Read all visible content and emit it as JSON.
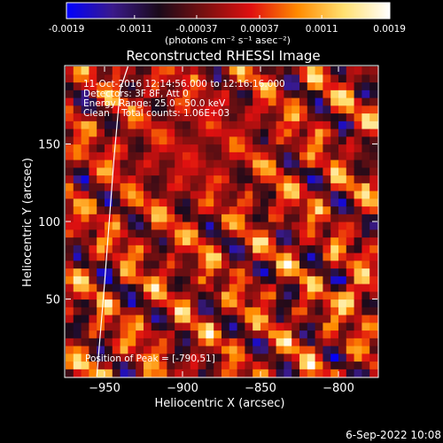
{
  "window": {
    "timestamp": "6-Sep-2022 10:08"
  },
  "colorbar": {
    "tick_labels": [
      "-0.0019",
      "-0.0011",
      "-0.00037",
      "0.00037",
      "0.0011",
      "0.0019"
    ],
    "values": [
      -0.0019,
      -0.0011,
      -0.00037,
      0.00037,
      0.0011,
      0.0019
    ],
    "range": [
      -0.0019,
      0.0019
    ],
    "units_html": "(photons cm⁻² s⁻¹ asec⁻²)"
  },
  "chart_data": {
    "type": "heatmap",
    "title": "Reconstructed RHESSI Image",
    "xlabel": "Heliocentric X (arcsec)",
    "ylabel": "Heliocentric Y (arcsec)",
    "xlim": [
      -975,
      -775
    ],
    "ylim": [
      0,
      200
    ],
    "x_ticks": [
      -950,
      -900,
      -850,
      -800
    ],
    "x_tick_labels": [
      "−950",
      "−900",
      "−850",
      "−800"
    ],
    "y_ticks": [
      50,
      100,
      150
    ],
    "y_tick_labels": [
      "50",
      "100",
      "150"
    ],
    "grid": false,
    "pixel_size_arcsec": 5,
    "colormap": [
      "#0000ff",
      "#3a1a8a",
      "#1a0a1a",
      "#7a1010",
      "#e01010",
      "#ff8a00",
      "#ffe070",
      "#ffffff"
    ],
    "annotations": [
      "11-Oct-2016 12:14:56.000 to 12:16:16.000",
      "Detectors: 3F 8F, Att 0",
      "Energy Range: 25.0 - 50.0 keV",
      "Clean    Total counts: 1.06E+03",
      "Position of Peak = [-790,51]"
    ],
    "peak_position": [
      -790,
      51
    ],
    "limb_curve_x": [
      -955,
      -950,
      -947,
      -944,
      -940,
      -935
    ],
    "limb_curve_y": [
      0,
      60,
      100,
      140,
      185,
      200
    ]
  }
}
